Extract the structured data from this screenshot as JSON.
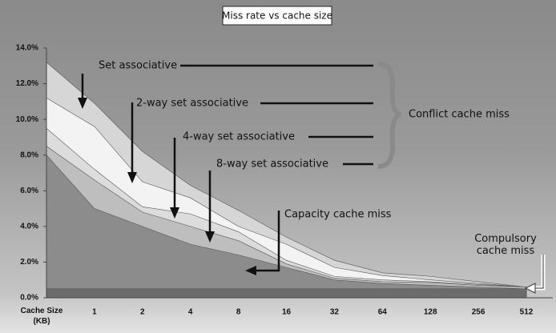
{
  "chart_data": {
    "type": "area",
    "title": "Miss rate vs cache size",
    "x_label": "Cache Size (KB)",
    "categories": [
      null,
      "1",
      "2",
      "4",
      "8",
      "16",
      "32",
      "64",
      "128",
      "256",
      "512"
    ],
    "series": [
      {
        "name": "Set associative",
        "color": "#d6d6d6",
        "values": [
          13.2,
          10.9,
          8.2,
          6.3,
          4.9,
          3.4,
          2.1,
          1.4,
          1.2,
          0.9,
          0.6
        ]
      },
      {
        "name": "2-way set associative",
        "color": "#f3f3f3",
        "values": [
          11.2,
          9.6,
          6.5,
          5.6,
          4.0,
          3.0,
          1.7,
          1.25,
          1.0,
          0.8,
          0.6
        ]
      },
      {
        "name": "4-way set associative",
        "color": "#dcdcdc",
        "values": [
          9.5,
          7.2,
          5.1,
          4.7,
          3.7,
          2.1,
          1.2,
          1.0,
          0.9,
          0.75,
          0.6
        ]
      },
      {
        "name": "8-way set associative",
        "color": "#bebebe",
        "values": [
          8.5,
          6.6,
          4.8,
          4.0,
          3.2,
          1.9,
          1.1,
          0.9,
          0.85,
          0.7,
          0.6
        ]
      },
      {
        "name": "Capacity cache miss",
        "color": "#8c8c8c",
        "values": [
          8.0,
          5.0,
          4.0,
          3.0,
          2.4,
          1.7,
          1.0,
          0.8,
          0.7,
          0.6,
          0.5
        ]
      },
      {
        "name": "Compulsory cache miss",
        "color": "#6c6c6c",
        "values": [
          0.5,
          0.5,
          0.5,
          0.5,
          0.5,
          0.5,
          0.5,
          0.5,
          0.5,
          0.5,
          0.5
        ]
      }
    ],
    "annotation": "Conflict cache miss",
    "ylim": [
      0,
      14
    ],
    "yticks": [
      {
        "value": 0,
        "label": "0.0%"
      },
      {
        "value": 2,
        "label": "2.0%"
      },
      {
        "value": 4,
        "label": "4.0%"
      },
      {
        "value": 6,
        "label": "6.0%"
      },
      {
        "value": 8,
        "label": "8.0%"
      },
      {
        "value": 10,
        "label": "10.0%"
      },
      {
        "value": 12,
        "label": "12.0%"
      },
      {
        "value": 14,
        "label": "14.0%"
      }
    ],
    "grid": false
  }
}
